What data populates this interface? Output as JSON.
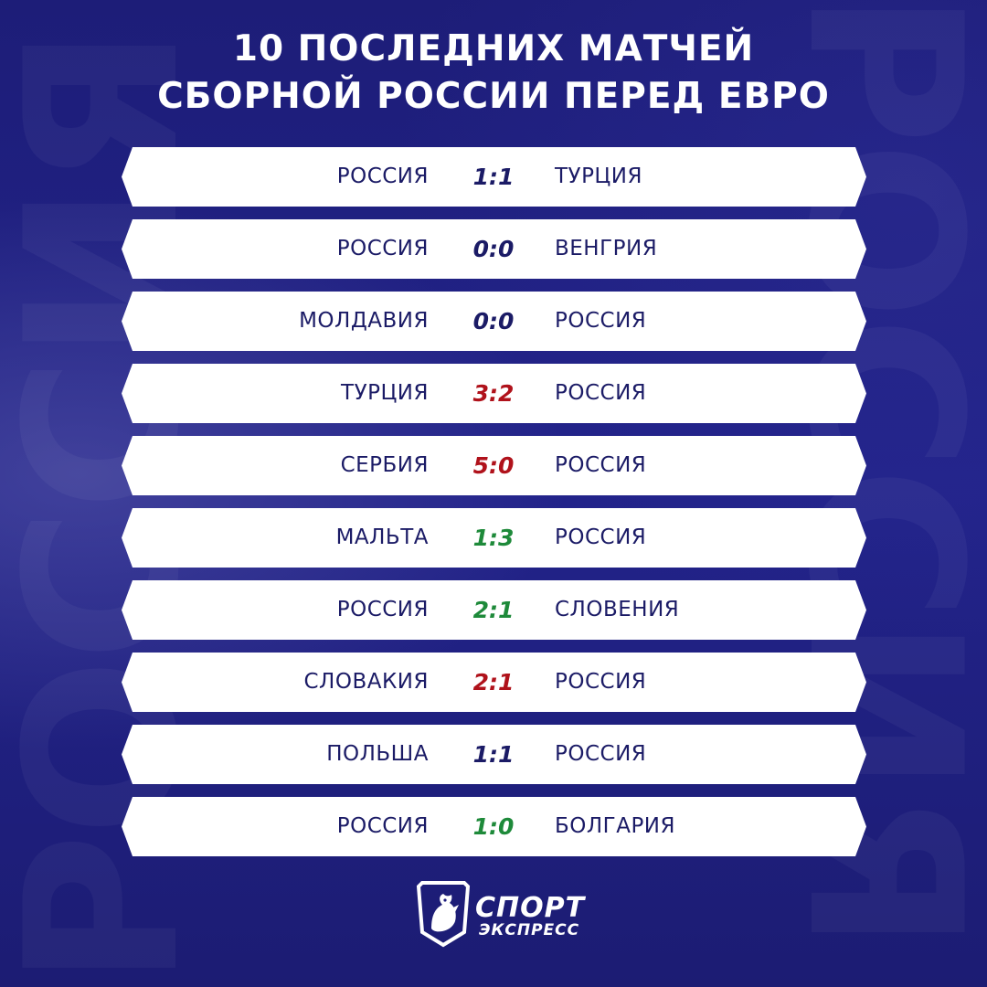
{
  "title": {
    "line1": "10 ПОСЛЕДНИХ МАТЧЕЙ",
    "line2": "СБОРНОЙ РОССИИ ПЕРЕД ЕВРО"
  },
  "background_word": "РОССИЯ",
  "colors": {
    "background": "#1f1f7e",
    "team_text": "#1b1b66",
    "draw": "#1b1b66",
    "loss": "#b0121b",
    "win": "#1e8a3a"
  },
  "matches": [
    {
      "home": "РОССИЯ",
      "score": "1:1",
      "away": "ТУРЦИЯ",
      "result": "draw"
    },
    {
      "home": "РОССИЯ",
      "score": "0:0",
      "away": "ВЕНГРИЯ",
      "result": "draw"
    },
    {
      "home": "МОЛДАВИЯ",
      "score": "0:0",
      "away": "РОССИЯ",
      "result": "draw"
    },
    {
      "home": "ТУРЦИЯ",
      "score": "3:2",
      "away": "РОССИЯ",
      "result": "loss"
    },
    {
      "home": "СЕРБИЯ",
      "score": "5:0",
      "away": "РОССИЯ",
      "result": "loss"
    },
    {
      "home": "МАЛЬТА",
      "score": "1:3",
      "away": "РОССИЯ",
      "result": "win"
    },
    {
      "home": "РОССИЯ",
      "score": "2:1",
      "away": "СЛОВЕНИЯ",
      "result": "win"
    },
    {
      "home": "СЛОВАКИЯ",
      "score": "2:1",
      "away": "РОССИЯ",
      "result": "loss"
    },
    {
      "home": "ПОЛЬША",
      "score": "1:1",
      "away": "РОССИЯ",
      "result": "draw"
    },
    {
      "home": "РОССИЯ",
      "score": "1:0",
      "away": "БОЛГАРИЯ",
      "result": "win"
    }
  ],
  "logo": {
    "line1": "СПОРТ",
    "line2": "ЭКСПРЕСС",
    "icon": "rooster-shield-icon"
  }
}
